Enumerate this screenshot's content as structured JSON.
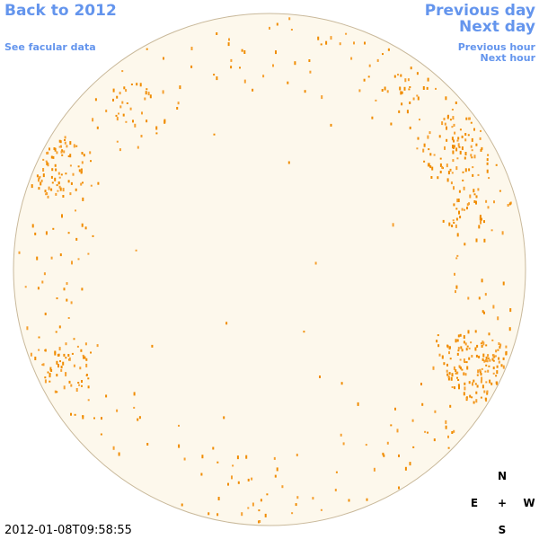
{
  "nav": {
    "back": "Back to 2012",
    "facular": "See facular data",
    "previous_day": "Previous day",
    "next_day": "Next day",
    "previous_hour": "Previous hour",
    "next_hour": "Next hour"
  },
  "compass": {
    "north": "N",
    "east": "E",
    "center": "+",
    "west": "W",
    "south": "S"
  },
  "timestamp": "2012-01-08T09:58:55"
}
